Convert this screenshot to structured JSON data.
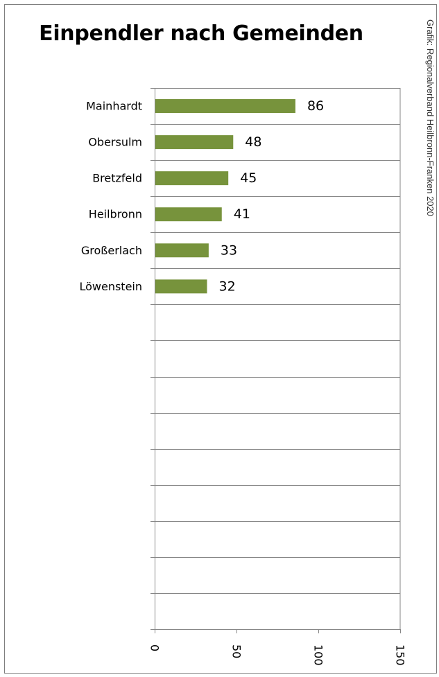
{
  "chart_data": {
    "type": "bar",
    "orientation": "horizontal",
    "title": "Einpendler nach Gemeinden",
    "categories": [
      "Mainhardt",
      "Obersulm",
      "Bretzfeld",
      "Heilbronn",
      "Großerlach",
      "Löwenstein",
      "",
      "",
      "",
      "",
      "",
      "",
      "",
      "",
      ""
    ],
    "values": [
      86,
      48,
      45,
      41,
      33,
      32,
      null,
      null,
      null,
      null,
      null,
      null,
      null,
      null,
      null
    ],
    "xlim": [
      0,
      150
    ],
    "x_ticks": [
      0,
      50,
      100,
      150
    ],
    "x_tick_labels": [
      "0",
      "50",
      "100",
      "150"
    ],
    "grid": "horizontal category lines",
    "bar_color": "#77933c",
    "data_labels": true,
    "credit": "Grafik: Regionalverband Heilbronn-Franken 2020"
  }
}
